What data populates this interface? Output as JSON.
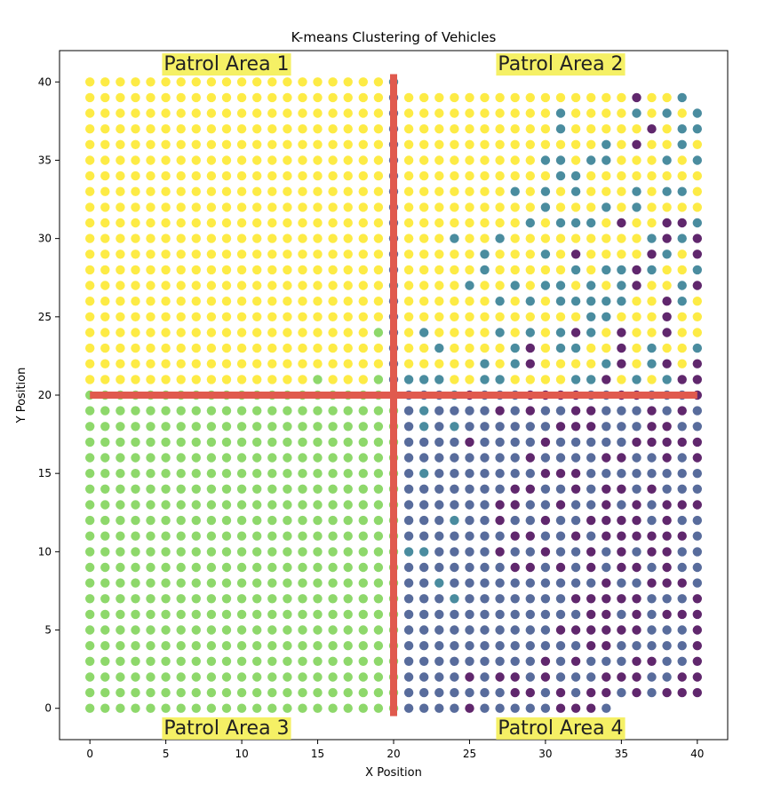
{
  "chart_data": {
    "type": "scatter",
    "title": "K-means Clustering of Vehicles",
    "xlabel": "X Position",
    "ylabel": "Y Position",
    "xlim": [
      -2,
      42
    ],
    "ylim": [
      -2,
      42
    ],
    "xticks": [
      0,
      5,
      10,
      15,
      20,
      25,
      30,
      35,
      40
    ],
    "yticks": [
      0,
      5,
      10,
      15,
      20,
      25,
      30,
      35,
      40
    ],
    "grid": false,
    "legend": "none",
    "colormap": "viridis",
    "grid_points": {
      "x_range": [
        0,
        40
      ],
      "y_range": [
        0,
        40
      ],
      "step": 1,
      "description_cluster_regions": [
        {
          "region": "top-left",
          "dominant_cluster_color": "#fde725"
        },
        {
          "region": "bottom-left",
          "dominant_cluster_color": "#7ad151"
        },
        {
          "region": "center",
          "dominant_cluster_color": "#2a788e"
        },
        {
          "region": "lower-center",
          "dominant_cluster_color": "#3b528b"
        },
        {
          "region": "right",
          "dominant_cluster_color": "#440154"
        }
      ]
    },
    "divider_lines": [
      {
        "orientation": "vertical",
        "x": 20,
        "y_range": [
          -0.5,
          40.5
        ],
        "color": "#e05a4e"
      },
      {
        "orientation": "horizontal",
        "y": 20,
        "x_range": [
          0,
          40
        ],
        "color": "#e05a4e"
      }
    ],
    "annotations": [
      {
        "id": "area1",
        "text": "Patrol Area 1",
        "x": 9,
        "y": 41.2,
        "background": "#f5f065"
      },
      {
        "id": "area2",
        "text": "Patrol Area 2",
        "x": 31,
        "y": 41.2,
        "background": "#f5f065"
      },
      {
        "id": "area3",
        "text": "Patrol Area 3",
        "x": 9,
        "y": -1.2,
        "background": "#f5f065"
      },
      {
        "id": "area4",
        "text": "Patrol Area 4",
        "x": 31,
        "y": -1.2,
        "background": "#f5f065"
      }
    ]
  }
}
